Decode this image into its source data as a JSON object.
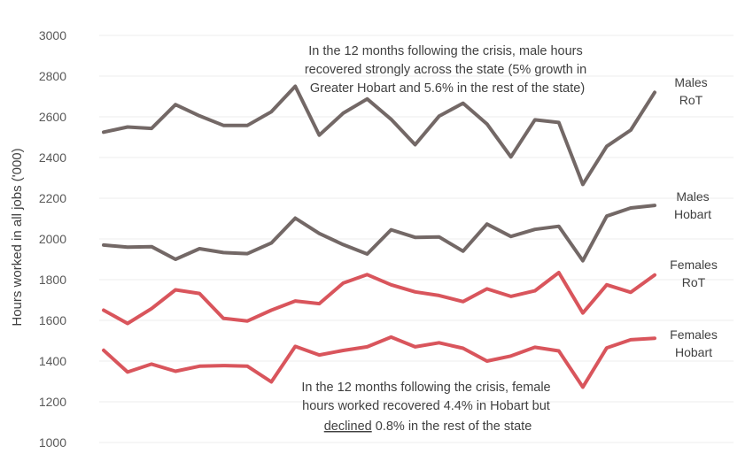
{
  "chart_data": {
    "type": "line",
    "ylabel": "Hours worked in all jobs ('000)",
    "xlabel": "",
    "ylim": [
      1000,
      3000
    ],
    "yticks": [
      1000,
      1200,
      1400,
      1600,
      1800,
      2000,
      2200,
      2400,
      2600,
      2800,
      3000
    ],
    "grid": true,
    "series": [
      {
        "name": "Males RoT",
        "label_lines": [
          "Males",
          "RoT"
        ],
        "color": "#736866",
        "values": [
          2525,
          2550,
          2543,
          2660,
          2605,
          2558,
          2558,
          2625,
          2750,
          2510,
          2618,
          2688,
          2588,
          2463,
          2603,
          2667,
          2565,
          2403,
          2585,
          2572,
          2268,
          2455,
          2535,
          2720
        ]
      },
      {
        "name": "Males Hobart",
        "label_lines": [
          "Males",
          "Hobart"
        ],
        "color": "#736866",
        "values": [
          1970,
          1960,
          1962,
          1900,
          1952,
          1933,
          1928,
          1980,
          2102,
          2027,
          1972,
          1926,
          2045,
          2008,
          2010,
          1940,
          2073,
          2012,
          2047,
          2062,
          1893,
          2112,
          2152,
          2165
        ]
      },
      {
        "name": "Females RoT",
        "label_lines": [
          "Females",
          "RoT"
        ],
        "color": "#d9555c",
        "values": [
          1650,
          1585,
          1658,
          1750,
          1732,
          1610,
          1597,
          1650,
          1695,
          1682,
          1783,
          1825,
          1775,
          1740,
          1722,
          1692,
          1755,
          1718,
          1745,
          1835,
          1636,
          1775,
          1738,
          1823
        ]
      },
      {
        "name": "Females Hobart",
        "label_lines": [
          "Females",
          "Hobart"
        ],
        "color": "#d9555c",
        "values": [
          1453,
          1346,
          1385,
          1350,
          1375,
          1378,
          1375,
          1298,
          1472,
          1430,
          1452,
          1470,
          1518,
          1470,
          1490,
          1463,
          1400,
          1425,
          1468,
          1450,
          1272,
          1465,
          1505,
          1512
        ]
      }
    ],
    "annotations": [
      {
        "id": "males",
        "lines": [
          "In the 12 months following the crisis, male hours",
          "recovered strongly across the state (5% growth in",
          "Greater Hobart and 5.6% in the rest of the state)"
        ]
      },
      {
        "id": "females",
        "lines": [
          "In the 12 months following the crisis, female",
          "hours worked recovered 4.4% in Hobart but"
        ],
        "last_line_underlined": "declined",
        "last_line_rest": " 0.8% in the rest of the state"
      }
    ]
  }
}
